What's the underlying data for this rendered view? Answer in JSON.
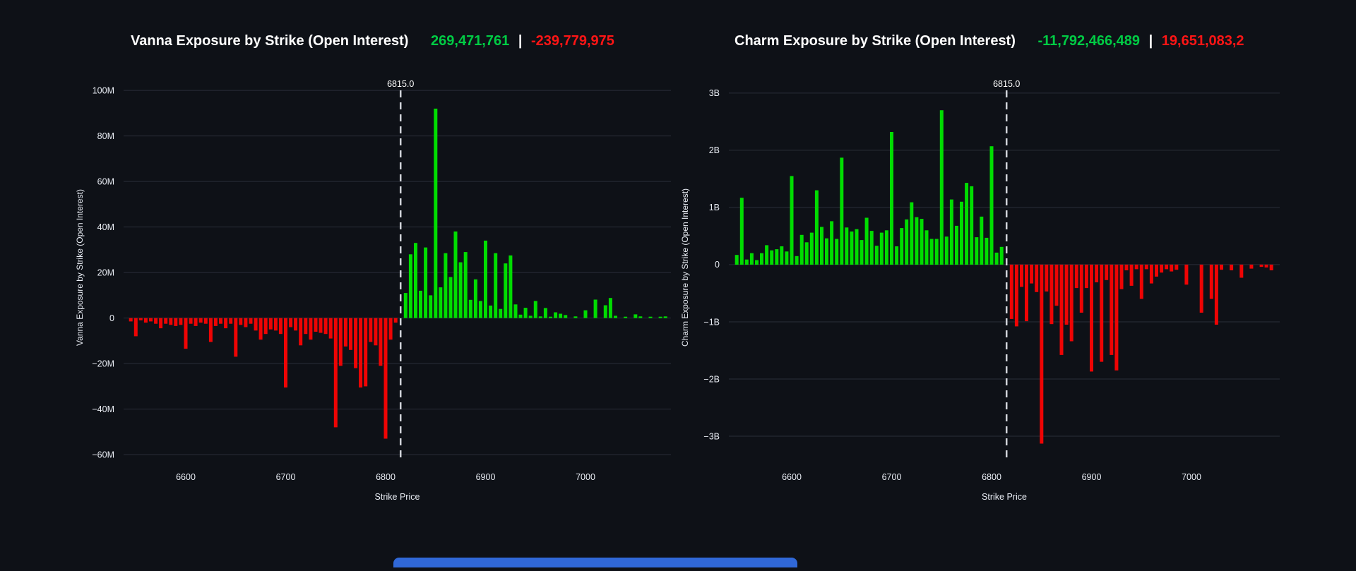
{
  "page": {
    "background": "#0e1117",
    "grid_color": "#2a2e39",
    "tick_color": "#e9edf4",
    "flip_line_color": "#d0d3d9",
    "bottom_partial_element": {
      "color": "#3068d8"
    }
  },
  "chart_data": [
    {
      "type": "bar",
      "title": "Vanna Exposure by Strike (Open Interest)",
      "header": {
        "positive_value": "269,471,761",
        "separator": "|",
        "negative_value": "-239,779,975",
        "positive_color": "#00cc44",
        "negative_color": "#ff1515"
      },
      "xlabel": "Strike Price",
      "ylabel": "Vanna Exposure by Strike (Open Interest)",
      "unit": "M",
      "x_ticks": [
        6600,
        6700,
        6800,
        6900,
        7000
      ],
      "y_tick_values": [
        100,
        80,
        60,
        40,
        20,
        0,
        -20,
        -40,
        -60
      ],
      "y_tick_labels": [
        "100M",
        "80M",
        "60M",
        "40M",
        "20M",
        "0",
        "−20M",
        "−40M",
        "−60M"
      ],
      "ylim": [
        -61.2,
        105.6
      ],
      "flip_line": {
        "strike": 6815,
        "label": "6815.0"
      },
      "bar_colors": {
        "positive": "#00dd00",
        "negative": "#ee0404"
      },
      "strikes": [
        6545,
        6550,
        6555,
        6560,
        6565,
        6570,
        6575,
        6580,
        6585,
        6590,
        6595,
        6600,
        6605,
        6610,
        6615,
        6620,
        6625,
        6630,
        6635,
        6640,
        6645,
        6650,
        6655,
        6660,
        6665,
        6670,
        6675,
        6680,
        6685,
        6690,
        6695,
        6700,
        6705,
        6710,
        6715,
        6720,
        6725,
        6730,
        6735,
        6740,
        6745,
        6750,
        6755,
        6760,
        6765,
        6770,
        6775,
        6780,
        6785,
        6790,
        6795,
        6800,
        6805,
        6810,
        6815,
        6820,
        6825,
        6830,
        6835,
        6840,
        6845,
        6850,
        6855,
        6860,
        6865,
        6870,
        6875,
        6880,
        6885,
        6890,
        6895,
        6900,
        6905,
        6910,
        6915,
        6920,
        6925,
        6930,
        6935,
        6940,
        6945,
        6950,
        6955,
        6960,
        6965,
        6970,
        6975,
        6980,
        6985,
        6990,
        6995,
        7000,
        7005,
        7010,
        7015,
        7020,
        7025,
        7030,
        7035,
        7040,
        7045,
        7050,
        7055,
        7060,
        7065,
        7070,
        7075,
        7080
      ],
      "values": [
        -1.5,
        -8,
        -1,
        -2,
        -1.5,
        -2.5,
        -4.5,
        -2.5,
        -3,
        -3.5,
        -3,
        -13.5,
        -2.5,
        -3.5,
        -2,
        -2.5,
        -10.5,
        -3.5,
        -2.5,
        -4.5,
        -2.5,
        -17,
        -3,
        -4,
        -2.5,
        -5.5,
        -9.5,
        -7,
        -5,
        -5.5,
        -7,
        -30.5,
        -4,
        -5.5,
        -12,
        -7,
        -9.5,
        -6,
        -6.5,
        -7,
        -9,
        -48,
        -21,
        -12.5,
        -14,
        -22,
        -30.5,
        -30,
        -10.5,
        -12,
        -21,
        -53,
        -9.5,
        -2,
        0,
        11,
        28,
        33,
        12,
        31,
        10,
        92,
        13.5,
        28.5,
        18,
        38,
        24.5,
        29,
        8,
        17,
        7.5,
        34,
        5.5,
        28.5,
        4,
        24,
        27.5,
        6,
        1.5,
        4.5,
        1,
        7.5,
        0.7,
        4.4,
        0.6,
        2.5,
        1.9,
        1.3,
        0,
        0.7,
        0,
        3.4,
        0,
        8.1,
        0,
        5.6,
        8.8,
        1,
        0,
        0.6,
        0,
        1.6,
        0.7,
        0,
        0.6,
        0,
        0.6,
        0.7
      ]
    },
    {
      "type": "bar",
      "title": "Charm Exposure by Strike (Open Interest)",
      "header": {
        "positive_value": "-11,792,466,489",
        "separator": "|",
        "negative_value": "19,651,083,2",
        "positive_color": "#00cc44",
        "negative_color": "#ff1515"
      },
      "xlabel": "Strike Price",
      "ylabel": "Charm Exposure by Strike (Open Interest)",
      "unit": "B",
      "x_ticks": [
        6600,
        6700,
        6800,
        6900,
        7000
      ],
      "y_tick_values": [
        3,
        2,
        1,
        0,
        -1,
        -2,
        -3
      ],
      "y_tick_labels": [
        "3B",
        "2B",
        "1B",
        "0",
        "−1B",
        "−2B",
        "−3B"
      ],
      "ylim": [
        -3.37,
        3.27
      ],
      "flip_line": {
        "strike": 6815,
        "label": "6815.0"
      },
      "bar_colors": {
        "positive": "#00dd00",
        "negative": "#ee0404"
      },
      "strikes": [
        6545,
        6550,
        6555,
        6560,
        6565,
        6570,
        6575,
        6580,
        6585,
        6590,
        6595,
        6600,
        6605,
        6610,
        6615,
        6620,
        6625,
        6630,
        6635,
        6640,
        6645,
        6650,
        6655,
        6660,
        6665,
        6670,
        6675,
        6680,
        6685,
        6690,
        6695,
        6700,
        6705,
        6710,
        6715,
        6720,
        6725,
        6730,
        6735,
        6740,
        6745,
        6750,
        6755,
        6760,
        6765,
        6770,
        6775,
        6780,
        6785,
        6790,
        6795,
        6800,
        6805,
        6810,
        6815,
        6820,
        6825,
        6830,
        6835,
        6840,
        6845,
        6850,
        6855,
        6860,
        6865,
        6870,
        6875,
        6880,
        6885,
        6890,
        6895,
        6900,
        6905,
        6910,
        6915,
        6920,
        6925,
        6930,
        6935,
        6940,
        6945,
        6950,
        6955,
        6960,
        6965,
        6970,
        6975,
        6980,
        6985,
        6990,
        6995,
        7000,
        7005,
        7010,
        7015,
        7020,
        7025,
        7030,
        7035,
        7040,
        7045,
        7050,
        7055,
        7060,
        7065,
        7070,
        7075,
        7080
      ],
      "values": [
        0.17,
        1.17,
        0.09,
        0.2,
        0.08,
        0.2,
        0.34,
        0.25,
        0.27,
        0.32,
        0.23,
        1.55,
        0.15,
        0.52,
        0.39,
        0.56,
        1.3,
        0.66,
        0.46,
        0.76,
        0.45,
        1.87,
        0.65,
        0.58,
        0.62,
        0.43,
        0.82,
        0.59,
        0.33,
        0.56,
        0.6,
        2.32,
        0.32,
        0.64,
        0.79,
        1.09,
        0.83,
        0.8,
        0.6,
        0.45,
        0.45,
        2.7,
        0.49,
        1.14,
        0.68,
        1.1,
        1.43,
        1.37,
        0.48,
        0.84,
        0.47,
        2.07,
        0.21,
        0.31,
        0,
        -0.95,
        -1.08,
        -0.39,
        -0.99,
        -0.33,
        -0.48,
        -3.13,
        -0.47,
        -1.04,
        -0.72,
        -1.58,
        -1.05,
        -1.34,
        -0.41,
        -0.84,
        -0.41,
        -1.87,
        -0.31,
        -1.7,
        -0.27,
        -1.58,
        -1.85,
        -0.43,
        -0.1,
        -0.37,
        -0.08,
        -0.6,
        -0.08,
        -0.33,
        -0.21,
        -0.14,
        -0.08,
        -0.12,
        -0.09,
        0,
        -0.35,
        0,
        0,
        -0.84,
        0,
        -0.6,
        -1.05,
        -0.09,
        0,
        -0.1,
        0,
        -0.23,
        0,
        -0.07,
        0,
        -0.04,
        -0.05,
        -0.1
      ]
    }
  ]
}
